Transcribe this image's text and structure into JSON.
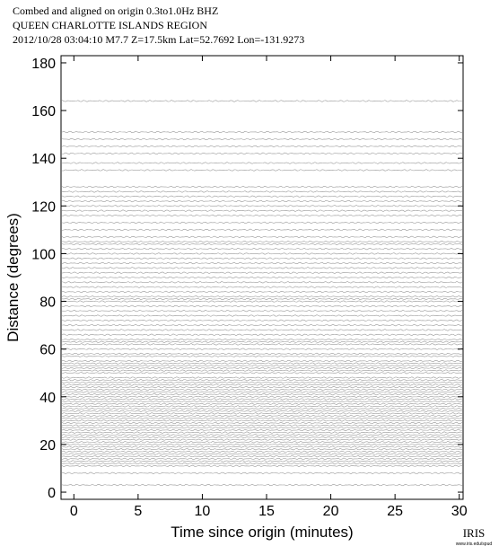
{
  "chart_data": {
    "type": "record-section",
    "title_lines": [
      "Combed and aligned on origin  0.3to1.0Hz  BHZ",
      "QUEEN CHARLOTTE ISLANDS REGION",
      "2012/10/28  03:04:10  M7.7  Z=17.5km Lat=52.7692 Lon=-131.9273"
    ],
    "xlabel": "Time since origin (minutes)",
    "ylabel": "Distance (degrees)",
    "xlim": [
      -1,
      30.3
    ],
    "ylim": [
      -3,
      183
    ],
    "xticks": [
      0,
      5,
      10,
      15,
      20,
      25,
      30
    ],
    "yticks": [
      0,
      20,
      40,
      60,
      80,
      100,
      120,
      140,
      160,
      180
    ],
    "trace_color": "#9a9a9a",
    "distances": [
      3,
      8,
      11,
      12,
      13,
      14,
      15,
      16,
      17,
      18,
      19,
      20,
      21,
      22,
      23,
      24,
      25,
      26,
      27,
      28,
      29,
      30,
      31,
      32,
      33,
      34,
      35,
      36,
      37,
      38,
      39,
      40,
      41,
      42,
      43,
      44,
      45,
      46,
      47,
      48,
      50,
      51,
      52,
      53,
      54,
      55,
      57,
      58,
      60,
      62,
      63,
      64,
      66,
      68,
      70,
      72,
      74,
      76,
      78,
      80,
      81,
      82,
      84,
      86,
      88,
      90,
      92,
      94,
      96,
      98,
      100,
      102,
      104,
      105,
      107,
      110,
      113,
      116,
      118,
      120,
      122,
      124,
      126,
      128,
      135,
      138,
      142,
      145,
      148,
      151,
      164
    ],
    "logo": "IRIS",
    "logo_url": "www.iris.edu/spud"
  }
}
